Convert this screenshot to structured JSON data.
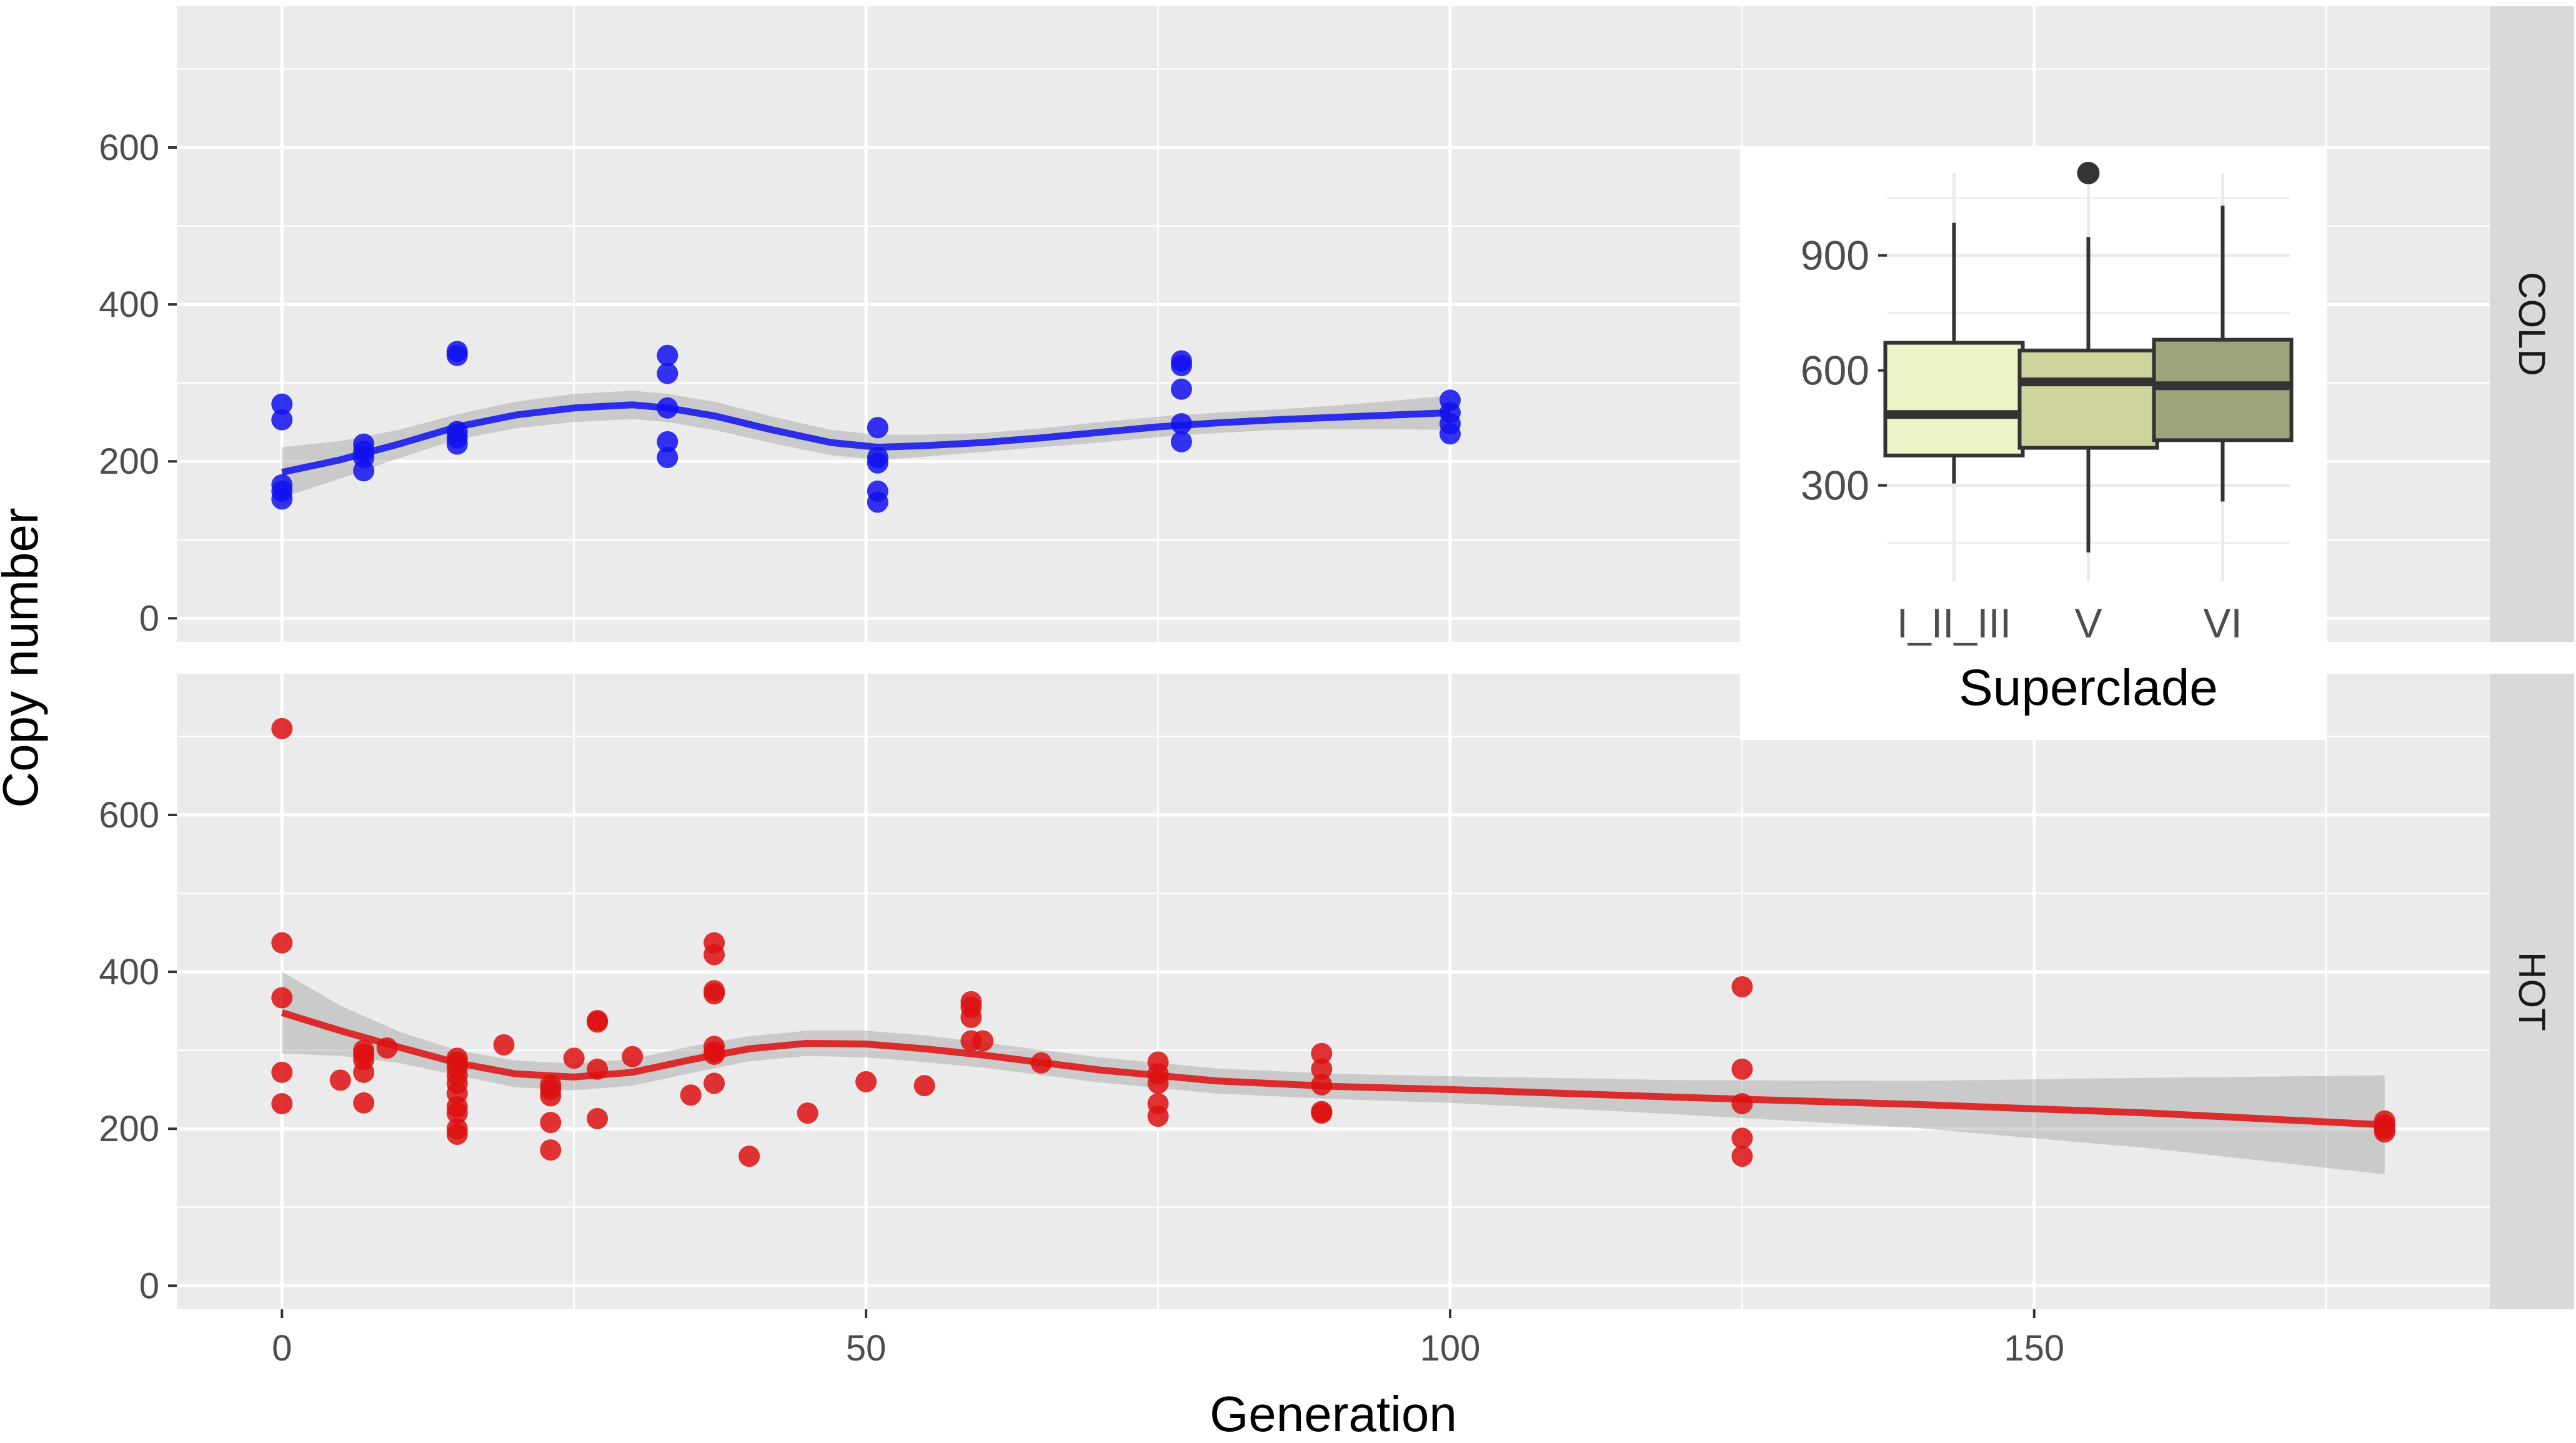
{
  "colors": {
    "panel_bg": "#ebebeb",
    "grid": "#ffffff",
    "strip_bg": "#d9d9d9",
    "tick_text": "#4d4d4d",
    "axis_text": "#000000",
    "cold": "#1111ee",
    "hot": "#dd1111",
    "ribbon": "#999999",
    "box_fills": [
      "#eef2c7",
      "#cfd49c",
      "#9da37d"
    ],
    "box_line": "#333333",
    "inset_bg": "#ffffff",
    "inset_grid": "#ebebeb"
  },
  "chart_data": [
    {
      "type": "scatter",
      "title": "",
      "xlabel": "Generation",
      "ylabel": "Copy number",
      "xlim": [
        -9,
        189
      ],
      "ylim": [
        -30,
        780
      ],
      "x_ticks": [
        0,
        50,
        100,
        150
      ],
      "x_tick_labels": [
        "0",
        "50",
        "100",
        "150"
      ],
      "y_ticks": [
        0,
        200,
        400,
        600
      ],
      "y_tick_labels": [
        "0",
        "200",
        "400",
        "600"
      ],
      "grid": true,
      "panels": [
        {
          "facet": "COLD",
          "color": "cold",
          "points": [
            [
              0,
              273
            ],
            [
              0,
              253
            ],
            [
              0,
              170
            ],
            [
              0,
              162
            ],
            [
              0,
              152
            ],
            [
              7,
              222
            ],
            [
              7,
              213
            ],
            [
              7,
              205
            ],
            [
              7,
              188
            ],
            [
              15,
              340
            ],
            [
              15,
              335
            ],
            [
              15,
              238
            ],
            [
              15,
              230
            ],
            [
              15,
              222
            ],
            [
              33,
              335
            ],
            [
              33,
              312
            ],
            [
              33,
              268
            ],
            [
              33,
              225
            ],
            [
              33,
              205
            ],
            [
              51,
              243
            ],
            [
              51,
              205
            ],
            [
              51,
              198
            ],
            [
              51,
              162
            ],
            [
              51,
              148
            ],
            [
              77,
              328
            ],
            [
              77,
              322
            ],
            [
              77,
              292
            ],
            [
              77,
              248
            ],
            [
              77,
              225
            ],
            [
              100,
              278
            ],
            [
              100,
              262
            ],
            [
              100,
              248
            ],
            [
              100,
              235
            ]
          ],
          "smooth": [
            [
              0,
              186
            ],
            [
              5,
              202
            ],
            [
              10,
              222
            ],
            [
              15,
              244
            ],
            [
              20,
              259
            ],
            [
              25,
              268
            ],
            [
              30,
              272
            ],
            [
              33,
              268
            ],
            [
              37,
              258
            ],
            [
              42,
              240
            ],
            [
              47,
              224
            ],
            [
              51,
              218
            ],
            [
              55,
              220
            ],
            [
              60,
              224
            ],
            [
              65,
              230
            ],
            [
              70,
              237
            ],
            [
              75,
              244
            ],
            [
              80,
              249
            ],
            [
              85,
              253
            ],
            [
              90,
              256
            ],
            [
              95,
              259
            ],
            [
              100,
              262
            ]
          ],
          "band_halfwidth": [
            32,
            24,
            18,
            16,
            17,
            18,
            18,
            18,
            18,
            17,
            16,
            16,
            14,
            12,
            12,
            13,
            13,
            13,
            13,
            15,
            18,
            22
          ]
        },
        {
          "facet": "HOT",
          "color": "hot",
          "points": [
            [
              0,
              710
            ],
            [
              0,
              437
            ],
            [
              0,
              367
            ],
            [
              0,
              272
            ],
            [
              0,
              232
            ],
            [
              5,
              262
            ],
            [
              7,
              300
            ],
            [
              7,
              295
            ],
            [
              7,
              288
            ],
            [
              7,
              272
            ],
            [
              7,
              233
            ],
            [
              9,
              303
            ],
            [
              15,
              290
            ],
            [
              15,
              285
            ],
            [
              15,
              278
            ],
            [
              15,
              268
            ],
            [
              15,
              258
            ],
            [
              15,
              245
            ],
            [
              15,
              228
            ],
            [
              15,
              220
            ],
            [
              15,
              200
            ],
            [
              15,
              193
            ],
            [
              19,
              307
            ],
            [
              23,
              256
            ],
            [
              23,
              250
            ],
            [
              23,
              242
            ],
            [
              23,
              208
            ],
            [
              23,
              173
            ],
            [
              25,
              290
            ],
            [
              27,
              338
            ],
            [
              27,
              336
            ],
            [
              27,
              276
            ],
            [
              27,
              213
            ],
            [
              30,
              292
            ],
            [
              35,
              243
            ],
            [
              37,
              437
            ],
            [
              37,
              422
            ],
            [
              37,
              376
            ],
            [
              37,
              372
            ],
            [
              37,
              305
            ],
            [
              37,
              298
            ],
            [
              37,
              295
            ],
            [
              37,
              258
            ],
            [
              40,
              165
            ],
            [
              45,
              220
            ],
            [
              50,
              260
            ],
            [
              55,
              255
            ],
            [
              59,
              362
            ],
            [
              59,
              355
            ],
            [
              59,
              342
            ],
            [
              59,
              312
            ],
            [
              60,
              312
            ],
            [
              65,
              284
            ],
            [
              75,
              285
            ],
            [
              75,
              270
            ],
            [
              75,
              258
            ],
            [
              75,
              232
            ],
            [
              75,
              216
            ],
            [
              89,
              296
            ],
            [
              89,
              276
            ],
            [
              89,
              256
            ],
            [
              89,
              222
            ],
            [
              89,
              220
            ],
            [
              125,
              381
            ],
            [
              125,
              276
            ],
            [
              125,
              232
            ],
            [
              125,
              188
            ],
            [
              125,
              165
            ],
            [
              180,
              210
            ],
            [
              180,
              205
            ],
            [
              180,
              200
            ],
            [
              180,
              196
            ]
          ],
          "smooth": [
            [
              0,
              348
            ],
            [
              5,
              325
            ],
            [
              10,
              304
            ],
            [
              15,
              284
            ],
            [
              20,
              270
            ],
            [
              25,
              266
            ],
            [
              30,
              272
            ],
            [
              35,
              288
            ],
            [
              40,
              302
            ],
            [
              45,
              309
            ],
            [
              50,
              308
            ],
            [
              55,
              302
            ],
            [
              60,
              294
            ],
            [
              70,
              275
            ],
            [
              80,
              261
            ],
            [
              90,
              254
            ],
            [
              100,
              250
            ],
            [
              120,
              240
            ],
            [
              140,
              231
            ],
            [
              160,
              220
            ],
            [
              180,
              205
            ]
          ],
          "band_halfwidth": [
            52,
            32,
            20,
            16,
            17,
            17,
            17,
            17,
            16,
            16,
            17,
            17,
            16,
            16,
            16,
            16,
            17,
            22,
            30,
            45,
            63
          ]
        }
      ]
    },
    {
      "type": "boxplot",
      "title": "",
      "xlabel": "Superclade",
      "ylabel": "",
      "categories": [
        "I_II_III",
        "V",
        "VI"
      ],
      "ylim": [
        50,
        1180
      ],
      "y_ticks": [
        300,
        600,
        900
      ],
      "y_tick_labels": [
        "300",
        "600",
        "900"
      ],
      "boxes": [
        {
          "label": "I_II_III",
          "whisker_low": 305,
          "q1": 378,
          "median": 485,
          "q3": 672,
          "whisker_high": 985,
          "outliers": []
        },
        {
          "label": "V",
          "whisker_low": 125,
          "q1": 398,
          "median": 570,
          "q3": 652,
          "whisker_high": 948,
          "outliers": [
            1115
          ]
        },
        {
          "label": "VI",
          "whisker_low": 258,
          "q1": 418,
          "median": 560,
          "q3": 680,
          "whisker_high": 1030,
          "outliers": []
        }
      ]
    }
  ]
}
